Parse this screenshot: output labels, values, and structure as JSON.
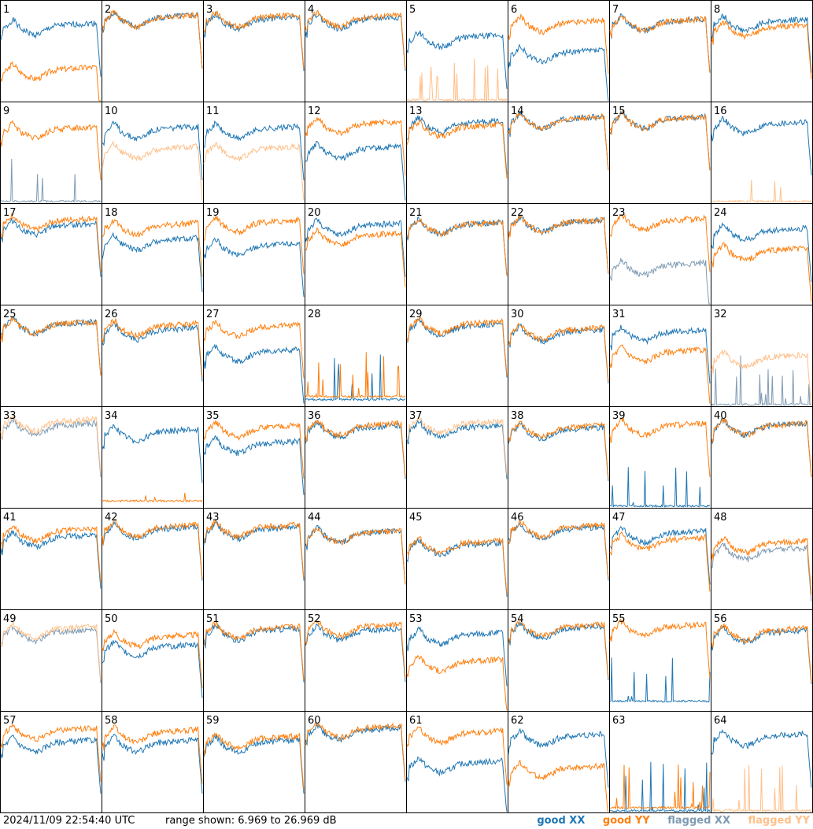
{
  "timestamp": "2024/11/09 22:54:40 UTC",
  "range_text": "range shown: 6.969 to 26.969 dB",
  "colors": {
    "good_xx": "#1f77b4",
    "good_yy": "#ff7f0e",
    "flagged_xx": "#7f9bb3",
    "flagged_yy": "#ffc08a"
  },
  "legend": {
    "good_xx": "good XX",
    "good_yy": "good YY",
    "flagged_xx": "flagged XX",
    "flagged_yy": "flagged YY"
  },
  "chart_data": {
    "type": "line",
    "grid": "8x8 small multiples",
    "ylim": [
      6.969,
      26.969
    ],
    "panels": [
      {
        "label": "1",
        "xx": "good",
        "yy": "good",
        "xx_level": 0.72,
        "yy_level": 0.28,
        "note": "yy dip"
      },
      {
        "label": "2",
        "xx": "good",
        "yy": "good",
        "xx_level": 0.8,
        "yy_level": 0.8
      },
      {
        "label": "3",
        "xx": "good",
        "yy": "good",
        "xx_level": 0.78,
        "yy_level": 0.8
      },
      {
        "label": "4",
        "xx": "good",
        "yy": "good",
        "xx_level": 0.78,
        "yy_level": 0.8
      },
      {
        "label": "5",
        "xx": "good",
        "yy": "flagged",
        "xx_level": 0.6,
        "yy_level": 0.0
      },
      {
        "label": "6",
        "xx": "good",
        "yy": "good",
        "xx_level": 0.45,
        "yy_level": 0.75
      },
      {
        "label": "7",
        "xx": "good",
        "yy": "good",
        "xx_level": 0.76,
        "yy_level": 0.76
      },
      {
        "label": "8",
        "xx": "good",
        "yy": "good",
        "xx_level": 0.76,
        "yy_level": 0.7
      },
      {
        "label": "9",
        "xx": "flagged",
        "yy": "good",
        "xx_level": 0.0,
        "yy_level": 0.7
      },
      {
        "label": "10",
        "xx": "good",
        "yy": "flagged",
        "xx_level": 0.7,
        "yy_level": 0.5
      },
      {
        "label": "11",
        "xx": "good",
        "yy": "flagged",
        "xx_level": 0.7,
        "yy_level": 0.5
      },
      {
        "label": "12",
        "xx": "good",
        "yy": "good",
        "xx_level": 0.5,
        "yy_level": 0.75
      },
      {
        "label": "13",
        "xx": "good",
        "yy": "good",
        "xx_level": 0.76,
        "yy_level": 0.72
      },
      {
        "label": "14",
        "xx": "good",
        "yy": "good",
        "xx_level": 0.8,
        "yy_level": 0.8
      },
      {
        "label": "15",
        "xx": "good",
        "yy": "good",
        "xx_level": 0.8,
        "yy_level": 0.8
      },
      {
        "label": "16",
        "xx": "good",
        "yy": "flagged",
        "xx_level": 0.75,
        "yy_level": 0.0
      },
      {
        "label": "17",
        "xx": "good",
        "yy": "good",
        "xx_level": 0.75,
        "yy_level": 0.8
      },
      {
        "label": "18",
        "xx": "good",
        "yy": "good",
        "xx_level": 0.6,
        "yy_level": 0.75
      },
      {
        "label": "19",
        "xx": "good",
        "yy": "good",
        "xx_level": 0.55,
        "yy_level": 0.78
      },
      {
        "label": "20",
        "xx": "good",
        "yy": "good",
        "xx_level": 0.75,
        "yy_level": 0.65
      },
      {
        "label": "21",
        "xx": "good",
        "yy": "good",
        "xx_level": 0.76,
        "yy_level": 0.76
      },
      {
        "label": "22",
        "xx": "good",
        "yy": "good",
        "xx_level": 0.78,
        "yy_level": 0.78
      },
      {
        "label": "23",
        "xx": "flagged",
        "yy": "good",
        "xx_level": 0.35,
        "yy_level": 0.8
      },
      {
        "label": "24",
        "xx": "good",
        "yy": "good",
        "xx_level": 0.7,
        "yy_level": 0.5
      },
      {
        "label": "25",
        "xx": "good",
        "yy": "good",
        "xx_level": 0.78,
        "yy_level": 0.78
      },
      {
        "label": "26",
        "xx": "good",
        "yy": "good",
        "xx_level": 0.72,
        "yy_level": 0.76
      },
      {
        "label": "27",
        "xx": "good",
        "yy": "good",
        "xx_level": 0.5,
        "yy_level": 0.75
      },
      {
        "label": "28",
        "xx": "good",
        "yy": "good",
        "xx_level": 0.05,
        "yy_level": 0.08
      },
      {
        "label": "29",
        "xx": "good",
        "yy": "good",
        "xx_level": 0.76,
        "yy_level": 0.78
      },
      {
        "label": "30",
        "xx": "good",
        "yy": "good",
        "xx_level": 0.7,
        "yy_level": 0.72
      },
      {
        "label": "31",
        "xx": "good",
        "yy": "good",
        "xx_level": 0.7,
        "yy_level": 0.5
      },
      {
        "label": "32",
        "xx": "flagged",
        "yy": "flagged",
        "xx_level": 0.0,
        "yy_level": 0.45
      },
      {
        "label": "33",
        "xx": "flagged",
        "yy": "flagged",
        "xx_level": 0.78,
        "yy_level": 0.82
      },
      {
        "label": "34",
        "xx": "good",
        "yy": "good",
        "xx_level": 0.72,
        "yy_level": 0.05
      },
      {
        "label": "35",
        "xx": "good",
        "yy": "good",
        "xx_level": 0.6,
        "yy_level": 0.76
      },
      {
        "label": "36",
        "xx": "good",
        "yy": "good",
        "xx_level": 0.76,
        "yy_level": 0.78
      },
      {
        "label": "37",
        "xx": "good",
        "yy": "flagged",
        "xx_level": 0.76,
        "yy_level": 0.8
      },
      {
        "label": "38",
        "xx": "good",
        "yy": "good",
        "xx_level": 0.74,
        "yy_level": 0.76
      },
      {
        "label": "39",
        "xx": "good",
        "yy": "good",
        "xx_level": 0.0,
        "yy_level": 0.78
      },
      {
        "label": "40",
        "xx": "good",
        "yy": "good",
        "xx_level": 0.78,
        "yy_level": 0.78
      },
      {
        "label": "41",
        "xx": "good",
        "yy": "good",
        "xx_level": 0.68,
        "yy_level": 0.74
      },
      {
        "label": "42",
        "xx": "good",
        "yy": "good",
        "xx_level": 0.76,
        "yy_level": 0.78
      },
      {
        "label": "43",
        "xx": "good",
        "yy": "good",
        "xx_level": 0.76,
        "yy_level": 0.78
      },
      {
        "label": "44",
        "xx": "good",
        "yy": "good",
        "xx_level": 0.72,
        "yy_level": 0.72
      },
      {
        "label": "45",
        "xx": "good",
        "yy": "good",
        "xx_level": 0.6,
        "yy_level": 0.62
      },
      {
        "label": "46",
        "xx": "good",
        "yy": "good",
        "xx_level": 0.76,
        "yy_level": 0.78
      },
      {
        "label": "47",
        "xx": "good",
        "yy": "good",
        "xx_level": 0.72,
        "yy_level": 0.65
      },
      {
        "label": "48",
        "xx": "flagged",
        "yy": "good",
        "xx_level": 0.55,
        "yy_level": 0.62
      },
      {
        "label": "49",
        "xx": "flagged",
        "yy": "flagged",
        "xx_level": 0.75,
        "yy_level": 0.78
      },
      {
        "label": "50",
        "xx": "good",
        "yy": "good",
        "xx_level": 0.6,
        "yy_level": 0.7
      },
      {
        "label": "51",
        "xx": "good",
        "yy": "good",
        "xx_level": 0.76,
        "yy_level": 0.78
      },
      {
        "label": "52",
        "xx": "good",
        "yy": "good",
        "xx_level": 0.76,
        "yy_level": 0.8
      },
      {
        "label": "53",
        "xx": "good",
        "yy": "good",
        "xx_level": 0.72,
        "yy_level": 0.45
      },
      {
        "label": "54",
        "xx": "good",
        "yy": "good",
        "xx_level": 0.78,
        "yy_level": 0.8
      },
      {
        "label": "55",
        "xx": "good",
        "yy": "good",
        "xx_level": 0.08,
        "yy_level": 0.8
      },
      {
        "label": "56",
        "xx": "good",
        "yy": "good",
        "xx_level": 0.74,
        "yy_level": 0.76
      },
      {
        "label": "57",
        "xx": "good",
        "yy": "good",
        "xx_level": 0.66,
        "yy_level": 0.78
      },
      {
        "label": "58",
        "xx": "good",
        "yy": "good",
        "xx_level": 0.66,
        "yy_level": 0.76
      },
      {
        "label": "59",
        "xx": "good",
        "yy": "good",
        "xx_level": 0.66,
        "yy_level": 0.7
      },
      {
        "label": "60",
        "xx": "good",
        "yy": "good",
        "xx_level": 0.78,
        "yy_level": 0.8
      },
      {
        "label": "61",
        "xx": "good",
        "yy": "good",
        "xx_level": 0.45,
        "yy_level": 0.75
      },
      {
        "label": "62",
        "xx": "good",
        "yy": "good",
        "xx_level": 0.72,
        "yy_level": 0.4
      },
      {
        "label": "63",
        "xx": "good",
        "yy": "good",
        "xx_level": 0.0,
        "yy_level": 0.03
      },
      {
        "label": "64",
        "xx": "good",
        "yy": "flagged",
        "xx_level": 0.72,
        "yy_level": 0.0
      }
    ]
  }
}
